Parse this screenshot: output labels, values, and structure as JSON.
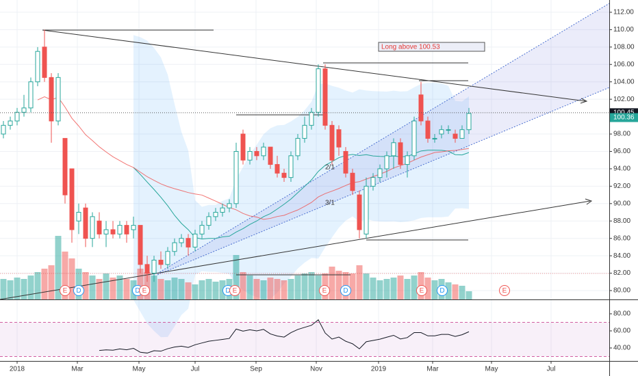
{
  "chart_data": [
    {
      "type": "candlestick",
      "xlim": [
        -0.5,
        88.5
      ],
      "xticks": [
        {
          "value": 2.0,
          "label": "2018"
        },
        {
          "value": 10.8,
          "label": "Mar"
        },
        {
          "value": 19.8,
          "label": "May"
        },
        {
          "value": 28.0,
          "label": "Jul"
        },
        {
          "value": 36.9,
          "label": "Sep"
        },
        {
          "value": 45.7,
          "label": "Nov"
        },
        {
          "value": 54.8,
          "label": "2019"
        },
        {
          "value": 62.7,
          "label": "Mar"
        },
        {
          "value": 71.3,
          "label": "May"
        },
        {
          "value": 80.0,
          "label": "Jul"
        }
      ],
      "ylim": [
        78.98,
        113.41
      ],
      "yticks": [
        {
          "value": 80,
          "label": "80.00"
        },
        {
          "value": 82,
          "label": "82.00"
        },
        {
          "value": 84,
          "label": "84.00"
        },
        {
          "value": 86,
          "label": "86.00"
        },
        {
          "value": 88,
          "label": "88.00"
        },
        {
          "value": 90,
          "label": "90.00"
        },
        {
          "value": 92,
          "label": "92.00"
        },
        {
          "value": 94,
          "label": "94.00"
        },
        {
          "value": 96,
          "label": "96.00"
        },
        {
          "value": 98,
          "label": "98.00"
        },
        {
          "value": 102,
          "label": "102.00"
        },
        {
          "value": 104,
          "label": "104.00"
        },
        {
          "value": 106,
          "label": "106.00"
        },
        {
          "value": 108,
          "label": "108.00"
        },
        {
          "value": 110,
          "label": "110.00"
        },
        {
          "value": 112,
          "label": "112.00"
        }
      ],
      "up_color": "#26a69a",
      "down_color": "#ef5350",
      "open": [
        98,
        99,
        99.5,
        100.5,
        101,
        104,
        108,
        104.5,
        99.5,
        97.5,
        94,
        88,
        89.5,
        86,
        88,
        86.5,
        87,
        86.5,
        87.5,
        87,
        87.5,
        83,
        82,
        83.5,
        83,
        84.5,
        85.5,
        86,
        85,
        86.5,
        87.5,
        88.5,
        89,
        89.5,
        90,
        98,
        95,
        96,
        95.5,
        96.5,
        94.5,
        93.5,
        93,
        95.5,
        97.5,
        99,
        100.5,
        105.5,
        99,
        98.5,
        96,
        93.5,
        91,
        86.5,
        92,
        93,
        94,
        95.5,
        97,
        94.5,
        95.5,
        102.5,
        99.5,
        97.5,
        98,
        98.5,
        98,
        97.5,
        98.5
      ],
      "high": [
        99.5,
        100,
        101,
        102.5,
        104.5,
        108,
        110,
        105,
        105,
        97.5,
        94,
        90,
        90,
        89,
        89,
        88,
        88,
        88,
        88,
        88.5,
        87.5,
        84,
        84,
        84.5,
        85,
        86,
        86.5,
        86.5,
        87,
        88,
        89,
        89.5,
        90,
        90.5,
        97,
        98.5,
        96.5,
        96.5,
        97,
        96.5,
        95.5,
        94,
        96,
        98,
        100,
        101,
        106,
        106,
        99.5,
        99,
        96.5,
        94,
        91.5,
        93,
        93.5,
        94.5,
        96,
        97.5,
        97.5,
        96,
        100,
        104,
        100,
        98,
        99,
        99,
        98.5,
        99,
        101
      ],
      "low": [
        97.5,
        98.5,
        99,
        100,
        100.5,
        103.5,
        104,
        97,
        99,
        90,
        85.5,
        86.5,
        85,
        85,
        86,
        85,
        86,
        86,
        85.5,
        86,
        82,
        81,
        81,
        82.5,
        82.5,
        84,
        85,
        84,
        84.5,
        86,
        87,
        88,
        88.5,
        89,
        89.5,
        94.5,
        94.5,
        95,
        95,
        94,
        93,
        92.5,
        92.5,
        95,
        97,
        98.5,
        100,
        98.5,
        94.5,
        95.5,
        93,
        91,
        86,
        86,
        91.5,
        92.5,
        93,
        94,
        94,
        93,
        95,
        99,
        97,
        97,
        97.5,
        98,
        97,
        97.5,
        98
      ],
      "close": [
        99,
        99.5,
        100.5,
        101,
        104,
        107.5,
        104.5,
        99.5,
        104.5,
        91,
        87,
        89,
        86,
        88.5,
        86.5,
        87,
        86.5,
        87.5,
        86.5,
        87.5,
        83,
        82,
        83.5,
        83,
        84.5,
        85.5,
        86,
        85,
        86.5,
        87.5,
        88.5,
        89,
        89.5,
        90,
        96,
        95,
        96,
        95.5,
        96.5,
        94.5,
        93.5,
        93,
        95.5,
        97.5,
        99,
        100.5,
        105.5,
        99,
        95,
        96.5,
        93.5,
        91.5,
        87,
        92,
        93,
        94,
        95.5,
        97,
        94.5,
        95.5,
        99.5,
        99.5,
        97.5,
        97.5,
        98.5,
        98.5,
        97.5,
        98.5,
        100.36
      ],
      "volume": [
        30,
        28,
        32,
        30,
        35,
        40,
        45,
        50,
        93,
        70,
        60,
        45,
        40,
        35,
        30,
        38,
        32,
        35,
        30,
        28,
        45,
        40,
        35,
        30,
        28,
        32,
        30,
        25,
        22,
        28,
        30,
        26,
        28,
        30,
        65,
        40,
        35,
        30,
        28,
        32,
        30,
        28,
        30,
        35,
        38,
        40,
        35,
        38,
        48,
        42,
        40,
        38,
        50,
        38,
        32,
        28,
        30,
        32,
        35,
        30,
        35,
        40,
        32,
        28,
        30,
        25,
        22,
        20,
        12
      ],
      "volume_lim": [
        0,
        100
      ],
      "price_labels": [
        {
          "value": 100.45,
          "label": "100.45",
          "color": "#131722"
        },
        {
          "value": 100.36,
          "label": "100.36",
          "color": "#26a69a"
        }
      ],
      "events": [
        {
          "index": 9,
          "label": "E",
          "color": "#ef5350"
        },
        {
          "index": 11,
          "label": "D",
          "color": "#2196f3"
        },
        {
          "index": 19.6,
          "label": "D",
          "color": "#2196f3"
        },
        {
          "index": 20.6,
          "label": "E",
          "color": "#ef5350"
        },
        {
          "index": 32.8,
          "label": "D",
          "color": "#2196f3"
        },
        {
          "index": 33.8,
          "label": "E",
          "color": "#ef5350"
        },
        {
          "index": 46.9,
          "label": "E",
          "color": "#ef5350"
        },
        {
          "index": 50,
          "label": "D",
          "color": "#2196f3"
        },
        {
          "index": 61.1,
          "label": "E",
          "color": "#ef5350"
        },
        {
          "index": 64.1,
          "label": "D",
          "color": "#2196f3"
        },
        {
          "index": 73.2,
          "label": "E",
          "color": "#ef5350"
        }
      ],
      "annotations": [
        "Long above 100.53",
        "2/1",
        "3/1"
      ]
    },
    {
      "type": "rsi",
      "ylim": [
        24.8,
        95.2
      ],
      "yticks": [
        {
          "value": 40,
          "label": "40.00"
        },
        {
          "value": 60,
          "label": "60.00"
        },
        {
          "value": 80,
          "label": "80.00"
        }
      ],
      "bands": [
        70,
        30
      ],
      "color": "#131722"
    }
  ]
}
